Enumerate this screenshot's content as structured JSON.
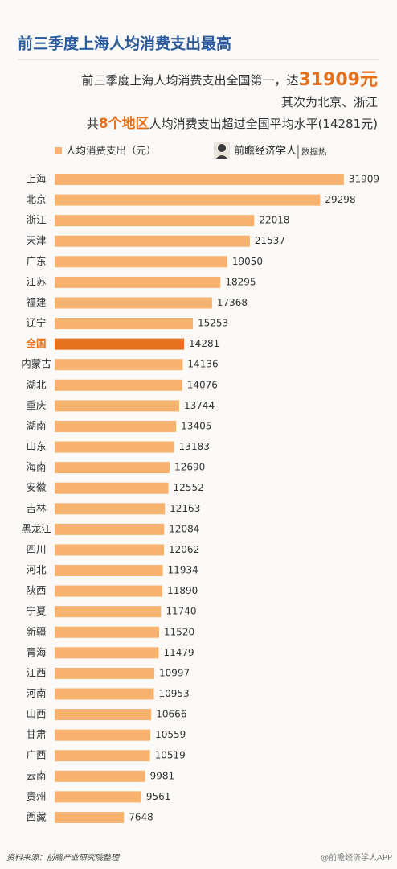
{
  "header": {
    "title": "前三季度上海人均消费支出最高",
    "subtitle_lines": [
      [
        "前三季度上海人均消费支出全国第一，达",
        "31909元"
      ],
      [
        "其次为北京、浙江"
      ],
      [
        "共",
        "8个地区",
        "人均消费支出超过全国平均水平(14281元)"
      ]
    ],
    "brand": "前瞻经济学人",
    "brand_tag": "数据热"
  },
  "chart_data": {
    "type": "hbar",
    "legend": "人均消费支出（元）",
    "categories": [
      "上海",
      "北京",
      "浙江",
      "天津",
      "广东",
      "江苏",
      "福建",
      "辽宁",
      "全国",
      "内蒙古",
      "湖北",
      "重庆",
      "湖南",
      "山东",
      "海南",
      "安徽",
      "吉林",
      "黑龙江",
      "四川",
      "河北",
      "陕西",
      "宁夏",
      "新疆",
      "青海",
      "江西",
      "河南",
      "山西",
      "甘肃",
      "广西",
      "云南",
      "贵州",
      "西藏"
    ],
    "values": [
      31909,
      29298,
      22018,
      21537,
      19050,
      18295,
      17368,
      15253,
      14281,
      14136,
      14076,
      13744,
      13405,
      13183,
      12690,
      12552,
      12163,
      12084,
      12062,
      11934,
      11890,
      11740,
      11520,
      11479,
      10997,
      10953,
      10666,
      10559,
      10519,
      9981,
      9561,
      7648
    ],
    "color": "#f7b26e",
    "highlight_category": "全国",
    "highlight_color": "#e5711d",
    "xlim": [
      0,
      36000
    ]
  },
  "footer": {
    "source": "资料来源：前瞻产业研究院整理",
    "watermark": "@前瞻经济学人APP"
  }
}
